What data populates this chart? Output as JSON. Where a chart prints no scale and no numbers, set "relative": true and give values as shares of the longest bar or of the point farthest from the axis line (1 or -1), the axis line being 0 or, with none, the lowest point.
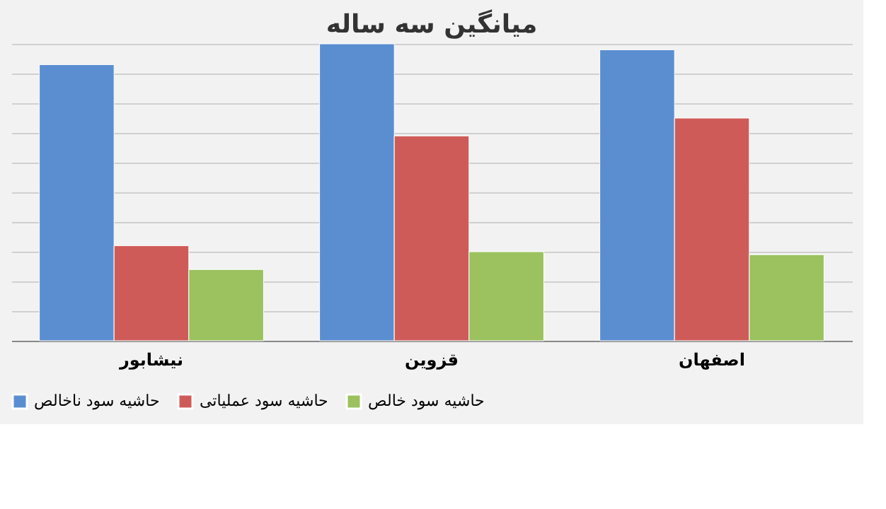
{
  "chart_data": {
    "type": "bar",
    "title": "میانگین سه ساله",
    "relative": true,
    "grid": "y",
    "legend": "bottom",
    "categories": [
      "نیشابور",
      "قزوین",
      "اصفهان"
    ],
    "series": [
      {
        "name": "حاشیه سود ناخالص",
        "color": "#5b8ed0",
        "values": [
          0.93,
          1,
          0.98
        ]
      },
      {
        "name": "حاشیه سود عملیاتی",
        "color": "#cf5b58",
        "values": [
          0.32,
          0.69,
          0.75
        ]
      },
      {
        "name": "حاشیه سود خالص",
        "color": "#9bc25e",
        "values": [
          0.24,
          0.3,
          0.29
        ]
      }
    ]
  }
}
